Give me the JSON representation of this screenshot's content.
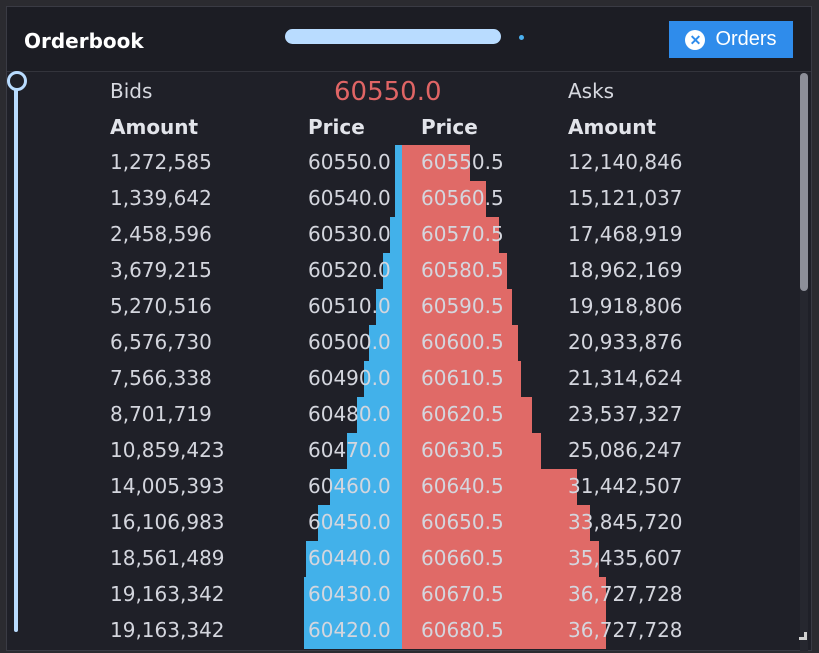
{
  "window": {
    "title": "Orderbook",
    "orders_button_label": "Orders"
  },
  "icons": {
    "orders_button_icon": "close-circle-icon",
    "slider_handle": "circle-handle-icon",
    "resize": "resize-grip-icon"
  },
  "colors": {
    "bid_bar": "#42b1ea",
    "ask_bar": "#e06a67",
    "last_price": "#e06565",
    "button": "#2f8ceb"
  },
  "orderbook": {
    "bids_label": "Bids",
    "asks_label": "Asks",
    "last_price": "60550.0",
    "headers": {
      "bid_amount": "Amount",
      "bid_price": "Price",
      "ask_price": "Price",
      "ask_amount": "Amount"
    },
    "rows": [
      {
        "bid_amount": "1,272,585",
        "bid_price": "60550.0",
        "ask_price": "60550.5",
        "ask_amount": "12,140,846",
        "bid_depth": 0.03,
        "ask_depth": 0.65
      },
      {
        "bid_amount": "1,339,642",
        "bid_price": "60540.0",
        "ask_price": "60560.5",
        "ask_amount": "15,121,037",
        "bid_depth": 0.03,
        "ask_depth": 0.81
      },
      {
        "bid_amount": "2,458,596",
        "bid_price": "60530.0",
        "ask_price": "60570.5",
        "ask_amount": "17,468,919",
        "bid_depth": 0.05,
        "ask_depth": 0.93
      },
      {
        "bid_amount": "3,679,215",
        "bid_price": "60520.0",
        "ask_price": "60580.5",
        "ask_amount": "18,962,169",
        "bid_depth": 0.08,
        "ask_depth": 1.01
      },
      {
        "bid_amount": "5,270,516",
        "bid_price": "60510.0",
        "ask_price": "60590.5",
        "ask_amount": "19,918,806",
        "bid_depth": 0.11,
        "ask_depth": 1.06
      },
      {
        "bid_amount": "6,576,730",
        "bid_price": "60500.0",
        "ask_price": "60600.5",
        "ask_amount": "20,933,876",
        "bid_depth": 0.14,
        "ask_depth": 1.12
      },
      {
        "bid_amount": "7,566,338",
        "bid_price": "60490.0",
        "ask_price": "60610.5",
        "ask_amount": "21,314,624",
        "bid_depth": 0.16,
        "ask_depth": 1.14
      },
      {
        "bid_amount": "8,701,719",
        "bid_price": "60480.0",
        "ask_price": "60620.5",
        "ask_amount": "23,537,327",
        "bid_depth": 0.19,
        "ask_depth": 1.25
      },
      {
        "bid_amount": "10,859,423",
        "bid_price": "60470.0",
        "ask_price": "60630.5",
        "ask_amount": "25,086,247",
        "bid_depth": 0.23,
        "ask_depth": 1.34
      },
      {
        "bid_amount": "14,005,393",
        "bid_price": "60460.0",
        "ask_price": "60640.5",
        "ask_amount": "31,442,507",
        "bid_depth": 0.3,
        "ask_depth": 1.68
      },
      {
        "bid_amount": "16,106,983",
        "bid_price": "60450.0",
        "ask_price": "60650.5",
        "ask_amount": "33,845,720",
        "bid_depth": 0.35,
        "ask_depth": 1.81
      },
      {
        "bid_amount": "18,561,489",
        "bid_price": "60440.0",
        "ask_price": "60660.5",
        "ask_amount": "35,435,607",
        "bid_depth": 0.4,
        "ask_depth": 1.89
      },
      {
        "bid_amount": "19,163,342",
        "bid_price": "60430.0",
        "ask_price": "60670.5",
        "ask_amount": "36,727,728",
        "bid_depth": 0.41,
        "ask_depth": 1.96
      },
      {
        "bid_amount": "19,163,342",
        "bid_price": "60420.0",
        "ask_price": "60680.5",
        "ask_amount": "36,727,728",
        "bid_depth": 0.41,
        "ask_depth": 1.96
      }
    ]
  }
}
